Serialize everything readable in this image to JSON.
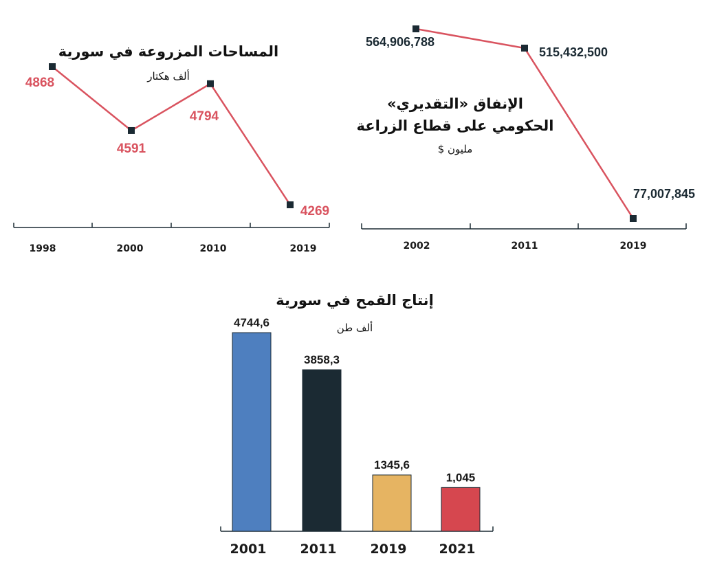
{
  "chart_data": [
    {
      "type": "line",
      "title": "المساحات المزروعة في سورية",
      "subtitle": "ألف هكتار",
      "categories": [
        "1998",
        "2000",
        "2010",
        "2019"
      ],
      "values": [
        4868,
        4591,
        4794,
        4269
      ],
      "value_labels": [
        "4868",
        "4591",
        "4794",
        "4269"
      ],
      "color": "#d9535f",
      "marker_color": "#1b2a33",
      "label_color": "#d9535f"
    },
    {
      "type": "line",
      "title_lines": [
        "الإنفاق «التقديري»",
        "الحكومي على قطاع الزراعة"
      ],
      "subtitle": "مليون $",
      "categories": [
        "2002",
        "2011",
        "2019"
      ],
      "values": [
        564906788,
        515432500,
        77007845
      ],
      "value_labels": [
        "564,906,788",
        "515,432,500",
        "77,007,845"
      ],
      "color": "#d9535f",
      "marker_color": "#1b2a33",
      "label_color": "#1b2a33"
    },
    {
      "type": "bar",
      "title": "إنتاج القمح في سورية",
      "subtitle": "ألف طن",
      "categories": [
        "2001",
        "2011",
        "2019",
        "2021"
      ],
      "values": [
        4744.6,
        3858.3,
        1345.6,
        1045
      ],
      "value_labels": [
        "4744,6",
        "3858,3",
        "1345,6",
        "1,045"
      ],
      "colors": [
        "#4e7fbf",
        "#1b2a33",
        "#e6b462",
        "#d6474f"
      ],
      "label_color": "#1a1a1a"
    }
  ]
}
